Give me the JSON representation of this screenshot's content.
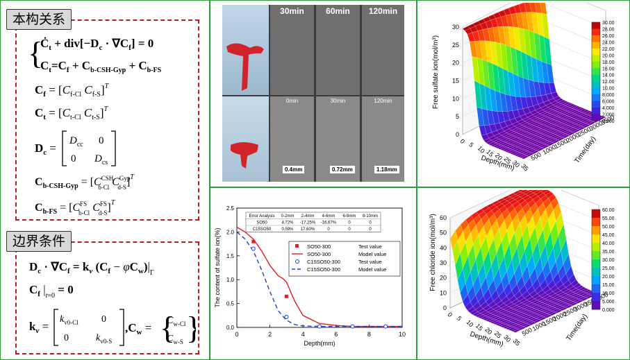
{
  "sections": {
    "relations_title": "本构关系",
    "boundary_title": "边界条件"
  },
  "micro_images": {
    "top_labels": [
      "30min",
      "60min",
      "120min"
    ],
    "bottom_labels": [
      "0min",
      "30min",
      "120min"
    ],
    "bottom_tags": [
      "0.4mm",
      "0.72mm",
      "1.18mm"
    ]
  },
  "chart_data": [
    {
      "type": "surface",
      "zlabel": "Free sulfate ion(mol/m³)",
      "xlabel": "Depth(mm)",
      "ylabel": "Time(day)",
      "zlim": [
        0,
        30
      ],
      "z_ticks": [
        "0",
        "5",
        "10",
        "15",
        "20",
        "25",
        "30"
      ],
      "x_ticks": [
        "0",
        "5",
        "10",
        "15",
        "20",
        "25",
        "30",
        "35"
      ],
      "y_ticks": [
        "500",
        "1000",
        "1500",
        "2000",
        "2500",
        "3000",
        "3500"
      ],
      "colorbar_ticks": [
        "30.00",
        "28.00",
        "26.00",
        "24.00",
        "22.00",
        "20.00",
        "18.00",
        "16.00",
        "14.00",
        "12.00",
        "10.00",
        "8.000",
        "6.000",
        "4.000",
        "2.000",
        "0.000"
      ]
    },
    {
      "type": "line",
      "ylabel": "The content of sulfate ion(%)",
      "xlabel": "Depth(mm)",
      "xlim": [
        0,
        10
      ],
      "ylim": [
        0,
        2.5
      ],
      "x_ticks": [
        "0",
        "2",
        "4",
        "6",
        "8",
        "10"
      ],
      "y_ticks": [
        "0.0",
        "0.5",
        "1.0",
        "1.5",
        "2.0",
        "2.5"
      ],
      "error_table": {
        "headers": [
          "Error Analysis",
          "0-2mm",
          "2-4mm",
          "4-6mm",
          "6-8mm",
          "8-10mm"
        ],
        "rows": [
          [
            "SO50",
            "4.72%",
            "-17.25%",
            "-16.67%",
            "0",
            "0"
          ],
          [
            "C15SO50",
            "0.59%",
            "17.60%",
            "0",
            "0",
            "0"
          ]
        ]
      },
      "series": [
        {
          "name": "SO50-300",
          "kind": "Test value",
          "color": "#e8191f",
          "x": [
            1,
            3
          ],
          "y": [
            1.8,
            0.65
          ]
        },
        {
          "name": "SO50-300",
          "kind": "Model value",
          "color": "#e8191f",
          "x": [
            0,
            0.5,
            1,
            1.5,
            2,
            2.5,
            2.8,
            3,
            3.5,
            4,
            5,
            6,
            7,
            8,
            9,
            10
          ],
          "y": [
            2.1,
            2.0,
            1.85,
            1.6,
            1.3,
            1.08,
            1.02,
            0.95,
            0.55,
            0.25,
            0.08,
            0.04,
            0.02,
            0.02,
            0.02,
            0.02
          ]
        },
        {
          "name": "C15SO50-300",
          "kind": "Test value",
          "color": "#1a3fd6",
          "x": [
            1,
            3,
            5,
            7,
            9
          ],
          "y": [
            1.65,
            0.22,
            0.02,
            0.02,
            0.02
          ]
        },
        {
          "name": "C15SO50-300",
          "kind": "Model value",
          "color": "#1a3fd6",
          "x": [
            0,
            0.5,
            1,
            1.5,
            2,
            2.5,
            3,
            3.5,
            4,
            5,
            6,
            7,
            8,
            9,
            10
          ],
          "y": [
            2.0,
            1.85,
            1.6,
            1.2,
            0.75,
            0.35,
            0.15,
            0.06,
            0.03,
            0.02,
            0.02,
            0.02,
            0.02,
            0.02,
            0.02
          ]
        }
      ]
    },
    {
      "type": "surface",
      "zlabel": "Free chloride ion(mol/m³)",
      "xlabel": "Depth(mm)",
      "ylabel": "Time(day)",
      "zlim": [
        0,
        60
      ],
      "z_ticks": [
        "0",
        "10",
        "20",
        "30",
        "40",
        "50",
        "60"
      ],
      "x_ticks": [
        "0",
        "5",
        "10",
        "15",
        "20",
        "25",
        "30",
        "35"
      ],
      "y_ticks": [
        "500",
        "1000",
        "1500",
        "2000",
        "2500",
        "3000",
        "3500",
        "4000"
      ],
      "colorbar_ticks": [
        "60.00",
        "55.00",
        "50.00",
        "45.00",
        "40.00",
        "35.00",
        "30.00",
        "25.00",
        "20.00",
        "15.00",
        "10.00",
        "5.000",
        "0.000"
      ]
    }
  ]
}
